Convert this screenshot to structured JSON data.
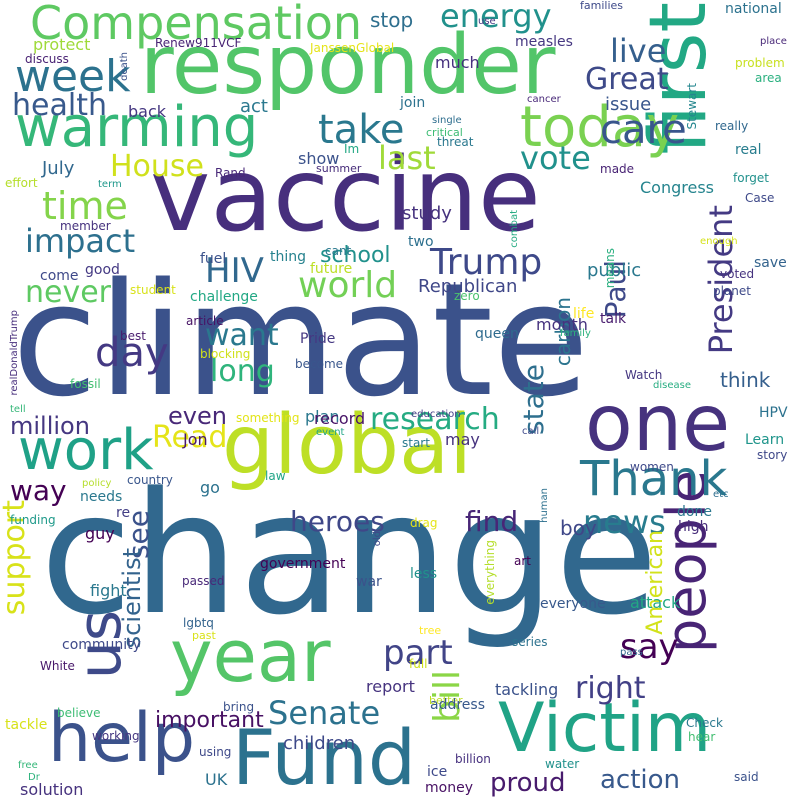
{
  "words": [
    {
      "text": "climate",
      "color": "#3b528b"
    },
    {
      "text": "change",
      "color": "#31688e"
    },
    {
      "text": "vaccine",
      "color": "#472f7d"
    },
    {
      "text": "responder",
      "color": "#52c569"
    },
    {
      "text": "first",
      "color": "#22a884"
    },
    {
      "text": "global",
      "color": "#bddf26"
    },
    {
      "text": "one",
      "color": "#46327e"
    },
    {
      "text": "warming",
      "color": "#35b779"
    },
    {
      "text": "today",
      "color": "#7ad151"
    },
    {
      "text": "year",
      "color": "#54c568"
    },
    {
      "text": "Victim",
      "color": "#20a386"
    },
    {
      "text": "Fund",
      "color": "#2c728e"
    },
    {
      "text": "help",
      "color": "#3b528b"
    },
    {
      "text": "people",
      "color": "#482475"
    },
    {
      "text": "work",
      "color": "#1fa187"
    },
    {
      "text": "us",
      "color": "#3e4a89"
    },
    {
      "text": "Compensation",
      "color": "#5ec962"
    },
    {
      "text": "Thank",
      "color": "#2a788e"
    },
    {
      "text": "week",
      "color": "#2c728e"
    },
    {
      "text": "care",
      "color": "#39568c"
    },
    {
      "text": "take",
      "color": "#2a788e"
    },
    {
      "text": "energy",
      "color": "#21918c"
    },
    {
      "text": "day",
      "color": "#443983"
    },
    {
      "text": "time",
      "color": "#84d44b"
    },
    {
      "text": "impact",
      "color": "#2d708e"
    },
    {
      "text": "Trump",
      "color": "#3e4989"
    },
    {
      "text": "world",
      "color": "#73d056"
    },
    {
      "text": "never",
      "color": "#5ec962"
    },
    {
      "text": "HIV",
      "color": "#31688e"
    },
    {
      "text": "vote",
      "color": "#21918c"
    },
    {
      "text": "last",
      "color": "#a0da39"
    },
    {
      "text": "Great",
      "color": "#3e4a89"
    },
    {
      "text": "live",
      "color": "#355f8d"
    },
    {
      "text": "health",
      "color": "#38598c"
    },
    {
      "text": "House",
      "color": "#d0e11c"
    },
    {
      "text": "President",
      "color": "#443a83"
    },
    {
      "text": "Paul",
      "color": "#3e4989"
    },
    {
      "text": "support",
      "color": "#d8e219"
    },
    {
      "text": "bill",
      "color": "#8bd646"
    },
    {
      "text": "Senate",
      "color": "#2c728e"
    },
    {
      "text": "research",
      "color": "#25ab82"
    },
    {
      "text": "say",
      "color": "#440154"
    },
    {
      "text": "part",
      "color": "#414487"
    },
    {
      "text": "news",
      "color": "#287c8e"
    },
    {
      "text": "heroes",
      "color": "#3f4788"
    },
    {
      "text": "way",
      "color": "#440154"
    },
    {
      "text": "million",
      "color": "#453781"
    },
    {
      "text": "Read",
      "color": "#e5e419"
    },
    {
      "text": "want",
      "color": "#2a788e"
    },
    {
      "text": "long",
      "color": "#2fb47c"
    },
    {
      "text": "even",
      "color": "#482878"
    },
    {
      "text": "state",
      "color": "#2e6f8e"
    },
    {
      "text": "see",
      "color": "#3b528b"
    },
    {
      "text": "scientist",
      "color": "#33638d"
    },
    {
      "text": "find",
      "color": "#482677"
    },
    {
      "text": "right",
      "color": "#424086"
    },
    {
      "text": "proud",
      "color": "#481b6d"
    },
    {
      "text": "action",
      "color": "#38598c"
    },
    {
      "text": "American",
      "color": "#d2e21b"
    },
    {
      "text": "important",
      "color": "#471063"
    },
    {
      "text": "children",
      "color": "#3e4989"
    },
    {
      "text": "think",
      "color": "#355f8d"
    },
    {
      "text": "boy",
      "color": "#3f4788"
    },
    {
      "text": "school",
      "color": "#21918c"
    },
    {
      "text": "Republican",
      "color": "#3f4788"
    },
    {
      "text": "public",
      "color": "#2a788e"
    },
    {
      "text": "study",
      "color": "#46327e"
    },
    {
      "text": "carbon",
      "color": "#2b748e"
    },
    {
      "text": "month",
      "color": "#46337f"
    },
    {
      "text": "act",
      "color": "#2a788e"
    },
    {
      "text": "issue",
      "color": "#39568c"
    },
    {
      "text": "July",
      "color": "#31688e"
    },
    {
      "text": "Congress",
      "color": "#25848e"
    },
    {
      "text": "stop",
      "color": "#2e6f8e"
    },
    {
      "text": "much",
      "color": "#46307e"
    },
    {
      "text": "protect",
      "color": "#9fda3a"
    },
    {
      "text": "measles",
      "color": "#453781"
    },
    {
      "text": "national",
      "color": "#2c728e"
    },
    {
      "text": "families",
      "color": "#3e4a89"
    },
    {
      "text": "Renew911VCF",
      "color": "#482475"
    },
    {
      "text": "JanssenGlobal",
      "color": "#e5e419"
    },
    {
      "text": "discuss",
      "color": "#482173"
    },
    {
      "text": "death",
      "color": "#3b528b"
    },
    {
      "text": "Stewart",
      "color": "#24868e"
    },
    {
      "text": "place",
      "color": "#482878"
    },
    {
      "text": "problem",
      "color": "#c8e020"
    },
    {
      "text": "area",
      "color": "#2ab07f"
    },
    {
      "text": "join",
      "color": "#2c728e"
    },
    {
      "text": "single",
      "color": "#2e6e8e"
    },
    {
      "text": "critical",
      "color": "#3dbc74"
    },
    {
      "text": "threat",
      "color": "#2a788e"
    },
    {
      "text": "cancer",
      "color": "#482878"
    },
    {
      "text": "really",
      "color": "#31688e"
    },
    {
      "text": "real",
      "color": "#287d8e"
    },
    {
      "text": "back",
      "color": "#453781"
    },
    {
      "text": "Im",
      "color": "#22a884"
    },
    {
      "text": "show",
      "color": "#3b528b"
    },
    {
      "text": "summer",
      "color": "#472c7a"
    },
    {
      "text": "Rand",
      "color": "#482878"
    },
    {
      "text": "made",
      "color": "#482374"
    },
    {
      "text": "effort",
      "color": "#b5de2b"
    },
    {
      "text": "term",
      "color": "#1f988b"
    },
    {
      "text": "forget",
      "color": "#21918c"
    },
    {
      "text": "Case",
      "color": "#3e4989"
    },
    {
      "text": "realDonaldTrump",
      "color": "#472e7c"
    },
    {
      "text": "member",
      "color": "#46327e"
    },
    {
      "text": "combat",
      "color": "#25ab82"
    },
    {
      "text": "two",
      "color": "#2d708e"
    },
    {
      "text": "cant",
      "color": "#2a788e"
    },
    {
      "text": "thing",
      "color": "#26828e"
    },
    {
      "text": "future",
      "color": "#bddf26"
    },
    {
      "text": "means",
      "color": "#29af7f"
    },
    {
      "text": "enough",
      "color": "#d5e21a"
    },
    {
      "text": "fuel",
      "color": "#3b528b"
    },
    {
      "text": "good",
      "color": "#443983"
    },
    {
      "text": "come",
      "color": "#3e4989"
    },
    {
      "text": "student",
      "color": "#d8e219"
    },
    {
      "text": "save",
      "color": "#33638d"
    },
    {
      "text": "voted",
      "color": "#46337f"
    },
    {
      "text": "planet",
      "color": "#3e4a89"
    },
    {
      "text": "life",
      "color": "#fde725"
    },
    {
      "text": "talk",
      "color": "#481c6e"
    },
    {
      "text": "zero",
      "color": "#4ac16d"
    },
    {
      "text": "challenge",
      "color": "#22a884"
    },
    {
      "text": "article",
      "color": "#471365"
    },
    {
      "text": "queen",
      "color": "#2f6b8e"
    },
    {
      "text": "Pride",
      "color": "#453882"
    },
    {
      "text": "best",
      "color": "#481b6d"
    },
    {
      "text": "blocking",
      "color": "#d0e11c"
    },
    {
      "text": "become",
      "color": "#39568c"
    },
    {
      "text": "family",
      "color": "#2db27d"
    },
    {
      "text": "Watch",
      "color": "#453781"
    },
    {
      "text": "disease",
      "color": "#27ad81"
    },
    {
      "text": "fossil",
      "color": "#42be71"
    },
    {
      "text": "tell",
      "color": "#35b779"
    },
    {
      "text": "something",
      "color": "#e2e418"
    },
    {
      "text": "education",
      "color": "#433e85"
    },
    {
      "text": "HPV",
      "color": "#2c728e"
    },
    {
      "text": "Learn",
      "color": "#1f958b"
    },
    {
      "text": "story",
      "color": "#3f4889"
    },
    {
      "text": "plan",
      "color": "#2a788e"
    },
    {
      "text": "record",
      "color": "#481467"
    },
    {
      "text": "event",
      "color": "#21a585"
    },
    {
      "text": "start",
      "color": "#297a8e"
    },
    {
      "text": "call",
      "color": "#3e4989"
    },
    {
      "text": "may",
      "color": "#46327e"
    },
    {
      "text": "Jon",
      "color": "#48186a"
    },
    {
      "text": "law",
      "color": "#20a486"
    },
    {
      "text": "policy",
      "color": "#b5de2b"
    },
    {
      "text": "country",
      "color": "#39568c"
    },
    {
      "text": "needs",
      "color": "#2a788e"
    },
    {
      "text": "re",
      "color": "#433e85"
    },
    {
      "text": "go",
      "color": "#2c728e"
    },
    {
      "text": "funding",
      "color": "#1f9a8a"
    },
    {
      "text": "human",
      "color": "#2d708e"
    },
    {
      "text": "women",
      "color": "#3e4989"
    },
    {
      "text": "etc",
      "color": "#2e6e8e"
    },
    {
      "text": "done",
      "color": "#2a778e"
    },
    {
      "text": "high",
      "color": "#472c7a"
    },
    {
      "text": "drag",
      "color": "#e5e419"
    },
    {
      "text": "old",
      "color": "#3e4a89"
    },
    {
      "text": "guy",
      "color": "#440154"
    },
    {
      "text": "government",
      "color": "#440154"
    },
    {
      "text": "fight",
      "color": "#2a788e"
    },
    {
      "text": "passed",
      "color": "#482878"
    },
    {
      "text": "war",
      "color": "#3b528b"
    },
    {
      "text": "less",
      "color": "#21918c"
    },
    {
      "text": "everything",
      "color": "#b5de2b"
    },
    {
      "text": "art",
      "color": "#440154"
    },
    {
      "text": "everyone",
      "color": "#38598c"
    },
    {
      "text": "attack",
      "color": "#22a884"
    },
    {
      "text": "community",
      "color": "#3e4989"
    },
    {
      "text": "lgbtq",
      "color": "#33638d"
    },
    {
      "text": "past",
      "color": "#d8e219"
    },
    {
      "text": "tree",
      "color": "#fde725"
    },
    {
      "text": "series",
      "color": "#2c728e"
    },
    {
      "text": "pass",
      "color": "#31688e"
    },
    {
      "text": "White",
      "color": "#48186a"
    },
    {
      "text": "full",
      "color": "#d0e11c"
    },
    {
      "text": "report",
      "color": "#46337f"
    },
    {
      "text": "tackling",
      "color": "#3b528b"
    },
    {
      "text": "better",
      "color": "#bddf26"
    },
    {
      "text": "address",
      "color": "#38598c"
    },
    {
      "text": "believe",
      "color": "#3dbc74"
    },
    {
      "text": "bring",
      "color": "#3b528b"
    },
    {
      "text": "Check",
      "color": "#2a788e"
    },
    {
      "text": "hear",
      "color": "#42be71"
    },
    {
      "text": "tackle",
      "color": "#d8e219"
    },
    {
      "text": "working",
      "color": "#453781"
    },
    {
      "text": "billion",
      "color": "#46307e"
    },
    {
      "text": "using",
      "color": "#3e4989"
    },
    {
      "text": "water",
      "color": "#21918c"
    },
    {
      "text": "said",
      "color": "#3b528b"
    },
    {
      "text": "free",
      "color": "#35b779"
    },
    {
      "text": "Dr",
      "color": "#2db27d"
    },
    {
      "text": "ice",
      "color": "#3e4989"
    },
    {
      "text": "money",
      "color": "#471063"
    },
    {
      "text": "solution",
      "color": "#46327e"
    },
    {
      "text": "UK",
      "color": "#2c728e"
    },
    {
      "text": "use",
      "color": "#453781"
    }
  ]
}
